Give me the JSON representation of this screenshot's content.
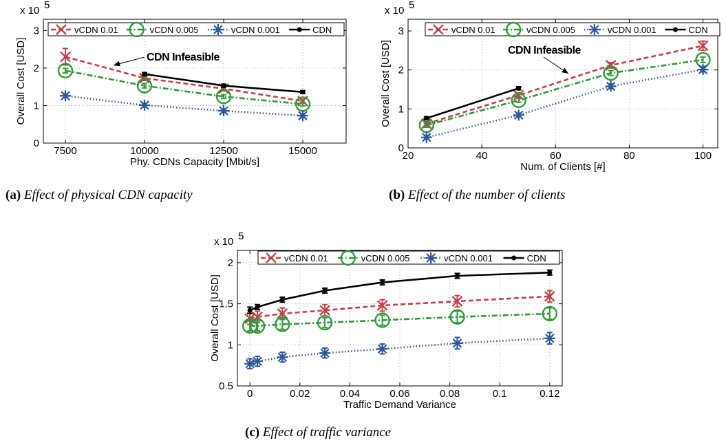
{
  "chart_data": [
    {
      "type": "line",
      "caption_letter": "(a)",
      "caption_text": "Effect of physical CDN capacity",
      "xlabel": "Phy. CDNs Capacity [Mbit/s]",
      "ylabel": "Overall Cost [USD]",
      "multiplier": "x 10",
      "multiplier_exp": "5",
      "x_categorical": true,
      "x": [
        7500,
        10000,
        12500,
        15000
      ],
      "xticks": [
        "7500",
        "10000",
        "12500",
        "15000"
      ],
      "ylim": [
        0,
        3.3
      ],
      "yticks": [
        "0",
        "1",
        "2",
        "3"
      ],
      "annotation": "CDN Infeasible",
      "series": [
        {
          "name": "vCDN 0.01",
          "x": [
            7500,
            10000,
            12500,
            15000
          ],
          "values": [
            2.3,
            1.73,
            1.45,
            1.12
          ],
          "err": [
            0.22,
            0.06,
            0.06,
            0.05
          ]
        },
        {
          "name": "vCDN 0.005",
          "x": [
            7500,
            10000,
            12500,
            15000
          ],
          "values": [
            1.93,
            1.53,
            1.24,
            1.04
          ],
          "err": [
            0.06,
            0.06,
            0.05,
            0.05
          ]
        },
        {
          "name": "vCDN 0.001",
          "x": [
            7500,
            10000,
            12500,
            15000
          ],
          "values": [
            1.26,
            1.01,
            0.86,
            0.73
          ],
          "err": [
            0.05,
            0.05,
            0.05,
            0.05
          ]
        },
        {
          "name": "CDN",
          "x": [
            10000,
            12500,
            15000
          ],
          "values": [
            1.84,
            1.53,
            1.36
          ],
          "err": [
            0.04,
            0.04,
            0.04
          ]
        }
      ]
    },
    {
      "type": "line",
      "caption_letter": "(b)",
      "caption_text": "Effect of the number of clients",
      "xlabel": "Num. of Clients [#]",
      "ylabel": "Overall Cost [USD]",
      "multiplier": "x 10",
      "multiplier_exp": "5",
      "x_categorical": false,
      "xlim": [
        20,
        104
      ],
      "xticks": [
        "20",
        "40",
        "60",
        "80",
        "100"
      ],
      "xtick_values": [
        20,
        40,
        60,
        80,
        100
      ],
      "ylim": [
        0,
        3.3
      ],
      "yticks": [
        "0",
        "1",
        "2",
        "3"
      ],
      "annotation": "CDN Infeasible",
      "series": [
        {
          "name": "vCDN 0.01",
          "x": [
            25,
            50,
            75,
            100
          ],
          "values": [
            0.62,
            1.35,
            2.12,
            2.62
          ],
          "err": [
            0.05,
            0.06,
            0.07,
            0.12
          ]
        },
        {
          "name": "vCDN 0.005",
          "x": [
            25,
            50,
            75,
            100
          ],
          "values": [
            0.58,
            1.22,
            1.92,
            2.26
          ],
          "err": [
            0.05,
            0.05,
            0.06,
            0.07
          ]
        },
        {
          "name": "vCDN 0.001",
          "x": [
            25,
            50,
            75,
            100
          ],
          "values": [
            0.27,
            0.84,
            1.58,
            2.01
          ],
          "err": [
            0.05,
            0.05,
            0.06,
            0.06
          ]
        },
        {
          "name": "CDN",
          "x": [
            25,
            50
          ],
          "values": [
            0.76,
            1.53
          ],
          "err": [
            0.04,
            0.04
          ]
        }
      ]
    },
    {
      "type": "line",
      "caption_letter": "(c)",
      "caption_text": "Effect of traffic variance",
      "xlabel": "Traffic Demand Variance",
      "ylabel": "Overall Cost [USD]",
      "multiplier": "x 10",
      "multiplier_exp": "5",
      "x_categorical": false,
      "xlim": [
        -0.005,
        0.125
      ],
      "xticks": [
        "0",
        "0.02",
        "0.04",
        "0.06",
        "0.08",
        "0.1",
        "0.12"
      ],
      "xtick_values": [
        0,
        0.02,
        0.04,
        0.06,
        0.08,
        0.1,
        0.12
      ],
      "ylim": [
        0.5,
        2.15
      ],
      "yticks": [
        "0.5",
        "1",
        "1.5",
        "2"
      ],
      "ytick_values": [
        0.5,
        1,
        1.5,
        2
      ],
      "series": [
        {
          "name": "vCDN 0.01",
          "x": [
            0,
            0.003,
            0.013,
            0.03,
            0.053,
            0.083,
            0.12
          ],
          "values": [
            1.32,
            1.34,
            1.38,
            1.42,
            1.48,
            1.53,
            1.59
          ],
          "err": [
            0.07,
            0.07,
            0.07,
            0.07,
            0.07,
            0.07,
            0.07
          ]
        },
        {
          "name": "vCDN 0.005",
          "x": [
            0,
            0.003,
            0.013,
            0.03,
            0.053,
            0.083,
            0.12
          ],
          "values": [
            1.23,
            1.23,
            1.25,
            1.27,
            1.3,
            1.34,
            1.38
          ],
          "err": [
            0.06,
            0.06,
            0.06,
            0.06,
            0.06,
            0.07,
            0.07
          ]
        },
        {
          "name": "vCDN 0.001",
          "x": [
            0,
            0.003,
            0.013,
            0.03,
            0.053,
            0.083,
            0.12
          ],
          "values": [
            0.77,
            0.8,
            0.85,
            0.9,
            0.95,
            1.02,
            1.08
          ],
          "err": [
            0.06,
            0.06,
            0.06,
            0.06,
            0.06,
            0.07,
            0.07
          ]
        },
        {
          "name": "CDN",
          "x": [
            0,
            0.003,
            0.013,
            0.03,
            0.053,
            0.083,
            0.12
          ],
          "values": [
            1.42,
            1.46,
            1.55,
            1.66,
            1.76,
            1.84,
            1.88
          ],
          "err": [
            0.04,
            0.03,
            0.03,
            0.03,
            0.03,
            0.03,
            0.03
          ]
        }
      ]
    }
  ],
  "style": {
    "colors": {
      "vCDN 0.01": "#c0424a",
      "vCDN 0.005": "#2e9a3a",
      "vCDN 0.001": "#2f569b",
      "CDN": "#000000"
    },
    "grid": "dotted",
    "legend_position": "top"
  }
}
